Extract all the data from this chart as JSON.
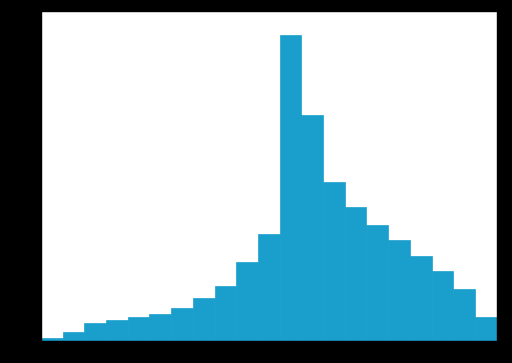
{
  "bar_heights": [
    1,
    3,
    6,
    7,
    8,
    9,
    11,
    14,
    18,
    26,
    35,
    100,
    74,
    52,
    44,
    38,
    33,
    28,
    23,
    17,
    8
  ],
  "bar_color": "#1a9fcc",
  "edge_color": "#1a9fcc",
  "background_color": "#ffffff",
  "frame_color": "#000000",
  "xlim": [
    -0.5,
    20.5
  ],
  "ylim": [
    0,
    108
  ],
  "figsize": [
    5.12,
    3.63
  ],
  "dpi": 100,
  "outer_bg": "#000000"
}
